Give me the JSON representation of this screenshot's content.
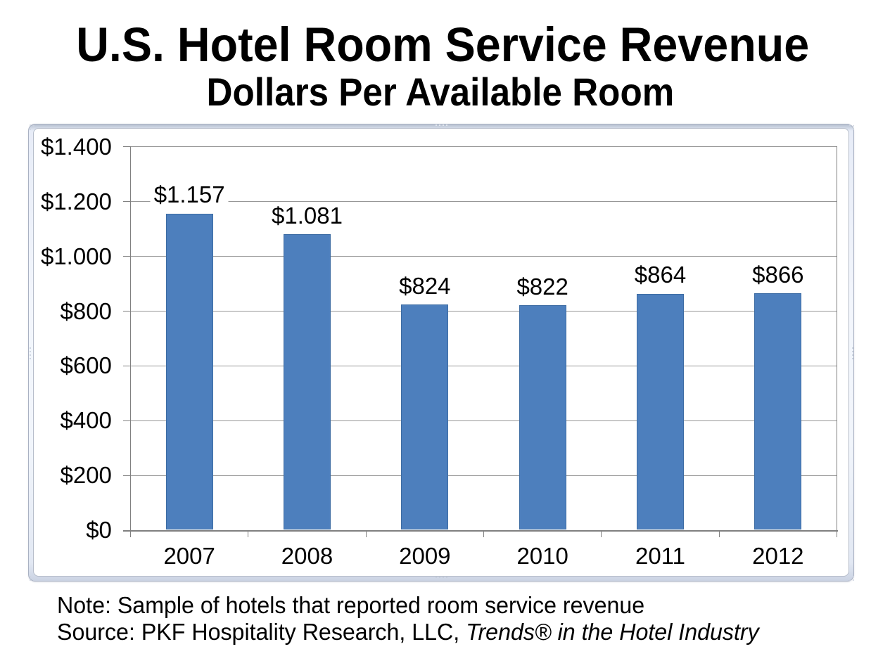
{
  "title": "U.S. Hotel Room Service Revenue",
  "subtitle": "Dollars Per Available Room",
  "note": "Note: Sample of hotels that reported room service revenue",
  "source_prefix": "Source: PKF Hospitality Research, LLC, ",
  "source_italic": "Trends® in the Hotel Industry",
  "chart_data": {
    "type": "bar",
    "title": "U.S. Hotel Room Service Revenue",
    "subtitle": "Dollars Per Available Room",
    "categories": [
      "2007",
      "2008",
      "2009",
      "2010",
      "2011",
      "2012"
    ],
    "values": [
      1157,
      1081,
      824,
      822,
      864,
      866
    ],
    "bar_labels": [
      "$1.157",
      "$1.081",
      "$824",
      "$822",
      "$864",
      "$866"
    ],
    "y_ticks": [
      {
        "value": 0,
        "label": "$0"
      },
      {
        "value": 200,
        "label": "$200"
      },
      {
        "value": 400,
        "label": "$400"
      },
      {
        "value": 600,
        "label": "$600"
      },
      {
        "value": 800,
        "label": "$800"
      },
      {
        "value": 1000,
        "label": "$1.000"
      },
      {
        "value": 1200,
        "label": "$1.200"
      },
      {
        "value": 1400,
        "label": "$1.400"
      }
    ],
    "ylim": [
      0,
      1400
    ],
    "xlabel": "",
    "ylabel": "",
    "grid": true,
    "legend": false,
    "colors": {
      "bar_fill": "#4d7fbd",
      "bar_border": "#3d6ca3",
      "axis": "#808080",
      "gridline": "#969696",
      "text": "#000000",
      "frame_border": "#a9b1c2",
      "frame_band": "#ccd4e2",
      "inner_border": "#b6bdca",
      "background": "#ffffff"
    }
  }
}
